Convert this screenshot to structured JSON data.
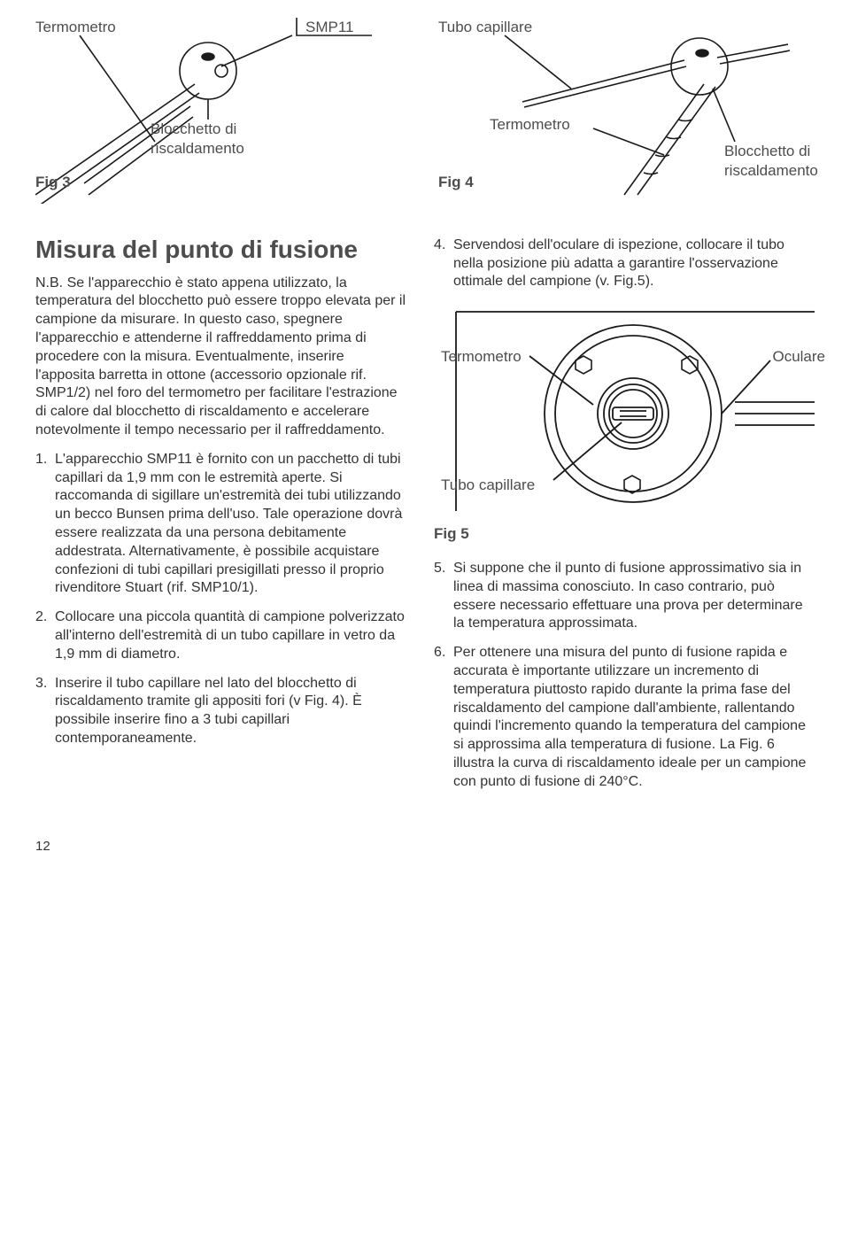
{
  "colors": {
    "text": "#4d4d4d",
    "stroke": "#1a1a1a",
    "bg": "#ffffff"
  },
  "labels": {
    "smp11": "SMP11",
    "tubo_capillare": "Tubo capillare",
    "termometro": "Termometro",
    "blocchetto": "Blocchetto di\nriscaldamento",
    "oculare": "Oculare"
  },
  "figs": {
    "fig3": "Fig 3",
    "fig4": "Fig 4",
    "fig5": "Fig 5"
  },
  "heading": "Misura del punto di fusione",
  "nb": "N.B. Se l'apparecchio è stato appena utilizzato, la temperatura del blocchetto può essere troppo elevata per il campione da misurare. In questo caso, spegnere l'apparecchio e attenderne il raffreddamento prima di procedere con la misura. Eventualmente, inserire l'apposita barretta in ottone (accessorio opzionale rif. SMP1/2) nel foro del termometro per facilitare l'estrazione di calore dal blocchetto di riscaldamento e accelerare notevolmente il tempo necessario per il raffreddamento.",
  "steps_left": [
    {
      "num": "1.",
      "text": "L'apparecchio SMP11 è fornito con un pacchetto di tubi capillari da 1,9 mm con le estremità aperte. Si raccomanda di sigillare un'estremità dei tubi utilizzando un becco Bunsen prima dell'uso. Tale operazione dovrà essere realizzata da una persona debitamente addestrata. Alternativamente, è possibile acquistare confezioni di tubi capillari presigillati presso il proprio rivenditore Stuart (rif. SMP10/1)."
    },
    {
      "num": "2.",
      "text": "Collocare una piccola quantità di campione polverizzato all'interno dell'estremità di un tubo capillare in vetro da 1,9 mm di diametro."
    },
    {
      "num": "3.",
      "text": "Inserire il tubo capillare nel lato del blocchetto di riscaldamento tramite gli appositi fori (v Fig. 4). È possibile inserire fino a 3 tubi capillari contemporaneamente."
    }
  ],
  "steps_right_a": [
    {
      "num": "4.",
      "text": "Servendosi dell'oculare di ispezione, collocare il tubo nella posizione più adatta a garantire l'osservazione ottimale del campione (v. Fig.5)."
    }
  ],
  "steps_right_b": [
    {
      "num": "5.",
      "text": "Si suppone che il punto di fusione approssimativo sia in linea di massima conosciuto. In caso contrario, può essere necessario effettuare una prova per determinare la temperatura approssimata."
    },
    {
      "num": "6.",
      "text": "Per ottenere una misura del punto di fusione rapida e accurata è importante utilizzare un incremento di temperatura piuttosto rapido durante la prima fase del riscaldamento del campione dall'ambiente, rallentando quindi l'incremento quando la temperatura del campione si approssima alla temperatura di fusione. La Fig. 6 illustra la curva di riscaldamento ideale per un campione con punto di fusione di 240°C."
    }
  ],
  "page_number": "12",
  "fig3_svg": {
    "stroke": "#1a1a1a",
    "stroke_width": 1.6
  },
  "fig4_svg": {
    "stroke": "#1a1a1a",
    "stroke_width": 1.6
  },
  "fig5_svg": {
    "stroke": "#1a1a1a",
    "stroke_width": 1.8
  }
}
